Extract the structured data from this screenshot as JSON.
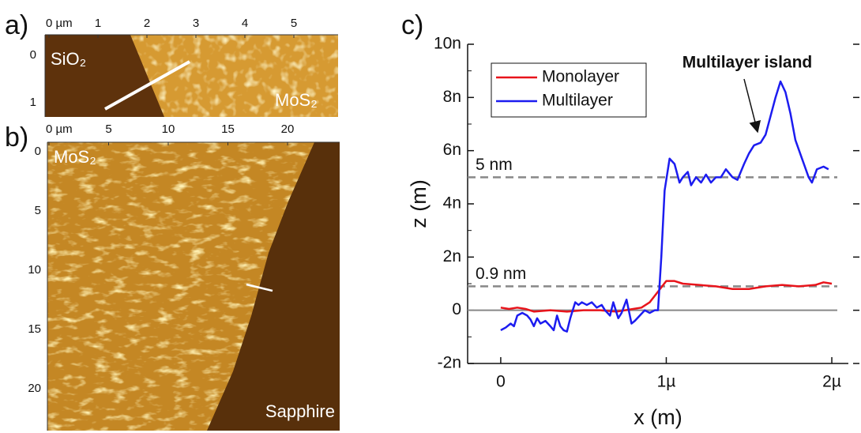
{
  "panels": [
    {
      "label": "a)",
      "xtick_labels": [
        "0 µm",
        "1",
        "2",
        "3",
        "4",
        "5"
      ],
      "ytick_labels": [
        "0",
        "1"
      ],
      "texts": [
        "SiO₂",
        "MoS₂"
      ]
    },
    {
      "label": "b)",
      "xtick_labels": [
        "0 µm",
        "5",
        "10",
        "15",
        "20"
      ],
      "ytick_labels": [
        "0",
        "5",
        "10",
        "15",
        "20"
      ],
      "texts": [
        "MoS₂",
        "Sapphire"
      ]
    }
  ],
  "chart_data": {
    "type": "line",
    "label": "c)",
    "x_label": "x (m)",
    "y_label": "z (m)",
    "xlim": [
      -2e-07,
      2.1e-06
    ],
    "ylim": [
      -2e-09,
      1e-08
    ],
    "xticks": [
      0,
      {
        "value": 1e-06,
        "label": "1µ"
      },
      {
        "value": 2e-06,
        "label": "2µ"
      }
    ],
    "yticks": [
      {
        "value": -2e-09,
        "label": "-2n"
      },
      0,
      {
        "value": 2e-09,
        "label": "2n"
      },
      {
        "value": 4e-09,
        "label": "4n"
      },
      {
        "value": 6e-09,
        "label": "6n"
      },
      {
        "value": 8e-09,
        "label": "8n"
      },
      {
        "value": 1e-08,
        "label": "10n"
      }
    ],
    "zero_line": true,
    "legend": "upper left",
    "reference_lines": [
      {
        "value": 5e-09,
        "label": "5 nm"
      },
      {
        "value": 9e-10,
        "label": "0.9 nm"
      }
    ],
    "annotation": {
      "text": "Multilayer island",
      "xy": [
        1.55e-06,
        6.75e-09
      ]
    },
    "series": [
      {
        "name": "Monolayer",
        "color": "#e8141b",
        "x": [
          0,
          5e-08,
          1e-07,
          1.5e-07,
          2e-07,
          3e-07,
          4e-07,
          5e-07,
          6e-07,
          7e-07,
          8e-07,
          8.5e-07,
          9e-07,
          9.5e-07,
          1e-06,
          1.05e-06,
          1.1e-06,
          1.2e-06,
          1.3e-06,
          1.4e-06,
          1.5e-06,
          1.6e-06,
          1.7e-06,
          1.8e-06,
          1.9e-06,
          1.95e-06,
          2e-06
        ],
        "values": [
          1e-10,
          5e-11,
          1e-10,
          5e-11,
          -5e-11,
          0,
          -5e-11,
          0,
          0,
          -5e-11,
          5e-11,
          1e-10,
          3e-10,
          7e-10,
          1.1e-09,
          1.1e-09,
          1e-09,
          9.5e-10,
          9e-10,
          8e-10,
          8e-10,
          9e-10,
          9.5e-10,
          9e-10,
          9.5e-10,
          1.05e-09,
          1e-09
        ]
      },
      {
        "name": "Multilayer",
        "color": "#1c1cf0",
        "x": [
          0,
          3e-08,
          6e-08,
          8e-08,
          1e-07,
          1.3e-07,
          1.6e-07,
          1.8e-07,
          2e-07,
          2.2e-07,
          2.4e-07,
          2.7e-07,
          3e-07,
          3.2e-07,
          3.4e-07,
          3.6e-07,
          3.8e-07,
          4e-07,
          4.2e-07,
          4.5e-07,
          4.7e-07,
          4.9e-07,
          5.2e-07,
          5.5e-07,
          5.8e-07,
          6.1e-07,
          6.3e-07,
          6.6e-07,
          6.8e-07,
          7.1e-07,
          7.3e-07,
          7.6e-07,
          7.9e-07,
          8.1e-07,
          8.4e-07,
          8.7e-07,
          9e-07,
          9.3e-07,
          9.5e-07,
          9.7e-07,
          9.9e-07,
          1.02e-06,
          1.05e-06,
          1.08e-06,
          1.1e-06,
          1.13e-06,
          1.15e-06,
          1.18e-06,
          1.21e-06,
          1.24e-06,
          1.27e-06,
          1.3e-06,
          1.33e-06,
          1.36e-06,
          1.4e-06,
          1.43e-06,
          1.47e-06,
          1.5e-06,
          1.53e-06,
          1.57e-06,
          1.6e-06,
          1.63e-06,
          1.66e-06,
          1.69e-06,
          1.72e-06,
          1.75e-06,
          1.78e-06,
          1.82e-06,
          1.86e-06,
          1.88e-06,
          1.91e-06,
          1.95e-06,
          1.98e-06
        ],
        "values": [
          -7.5e-10,
          -6.5e-10,
          -5e-10,
          -6e-10,
          -2e-10,
          -1e-10,
          -2e-10,
          -3.5e-10,
          -6e-10,
          -3e-10,
          -5e-10,
          -4e-10,
          -6e-10,
          -7.5e-10,
          -2e-10,
          -6e-10,
          -7.5e-10,
          -8e-10,
          -3e-10,
          3e-10,
          2e-10,
          3e-10,
          2e-10,
          3e-10,
          1e-10,
          2e-10,
          0,
          -2e-10,
          3e-10,
          -3e-10,
          -1e-10,
          4e-10,
          -5e-10,
          -4e-10,
          -2e-10,
          0,
          -1e-10,
          0,
          0,
          2e-09,
          4.5e-09,
          5.7e-09,
          5.5e-09,
          4.8e-09,
          5e-09,
          5.2e-09,
          4.7e-09,
          5e-09,
          4.8e-09,
          5.1e-09,
          4.8e-09,
          5e-09,
          5e-09,
          5.3e-09,
          5e-09,
          4.9e-09,
          5.5e-09,
          5.9e-09,
          6.2e-09,
          6.3e-09,
          6.6e-09,
          7.3e-09,
          8e-09,
          8.6e-09,
          8.2e-09,
          7.4e-09,
          6.4e-09,
          5.7e-09,
          5e-09,
          4.8e-09,
          5.3e-09,
          5.4e-09,
          5.3e-09
        ]
      }
    ]
  }
}
